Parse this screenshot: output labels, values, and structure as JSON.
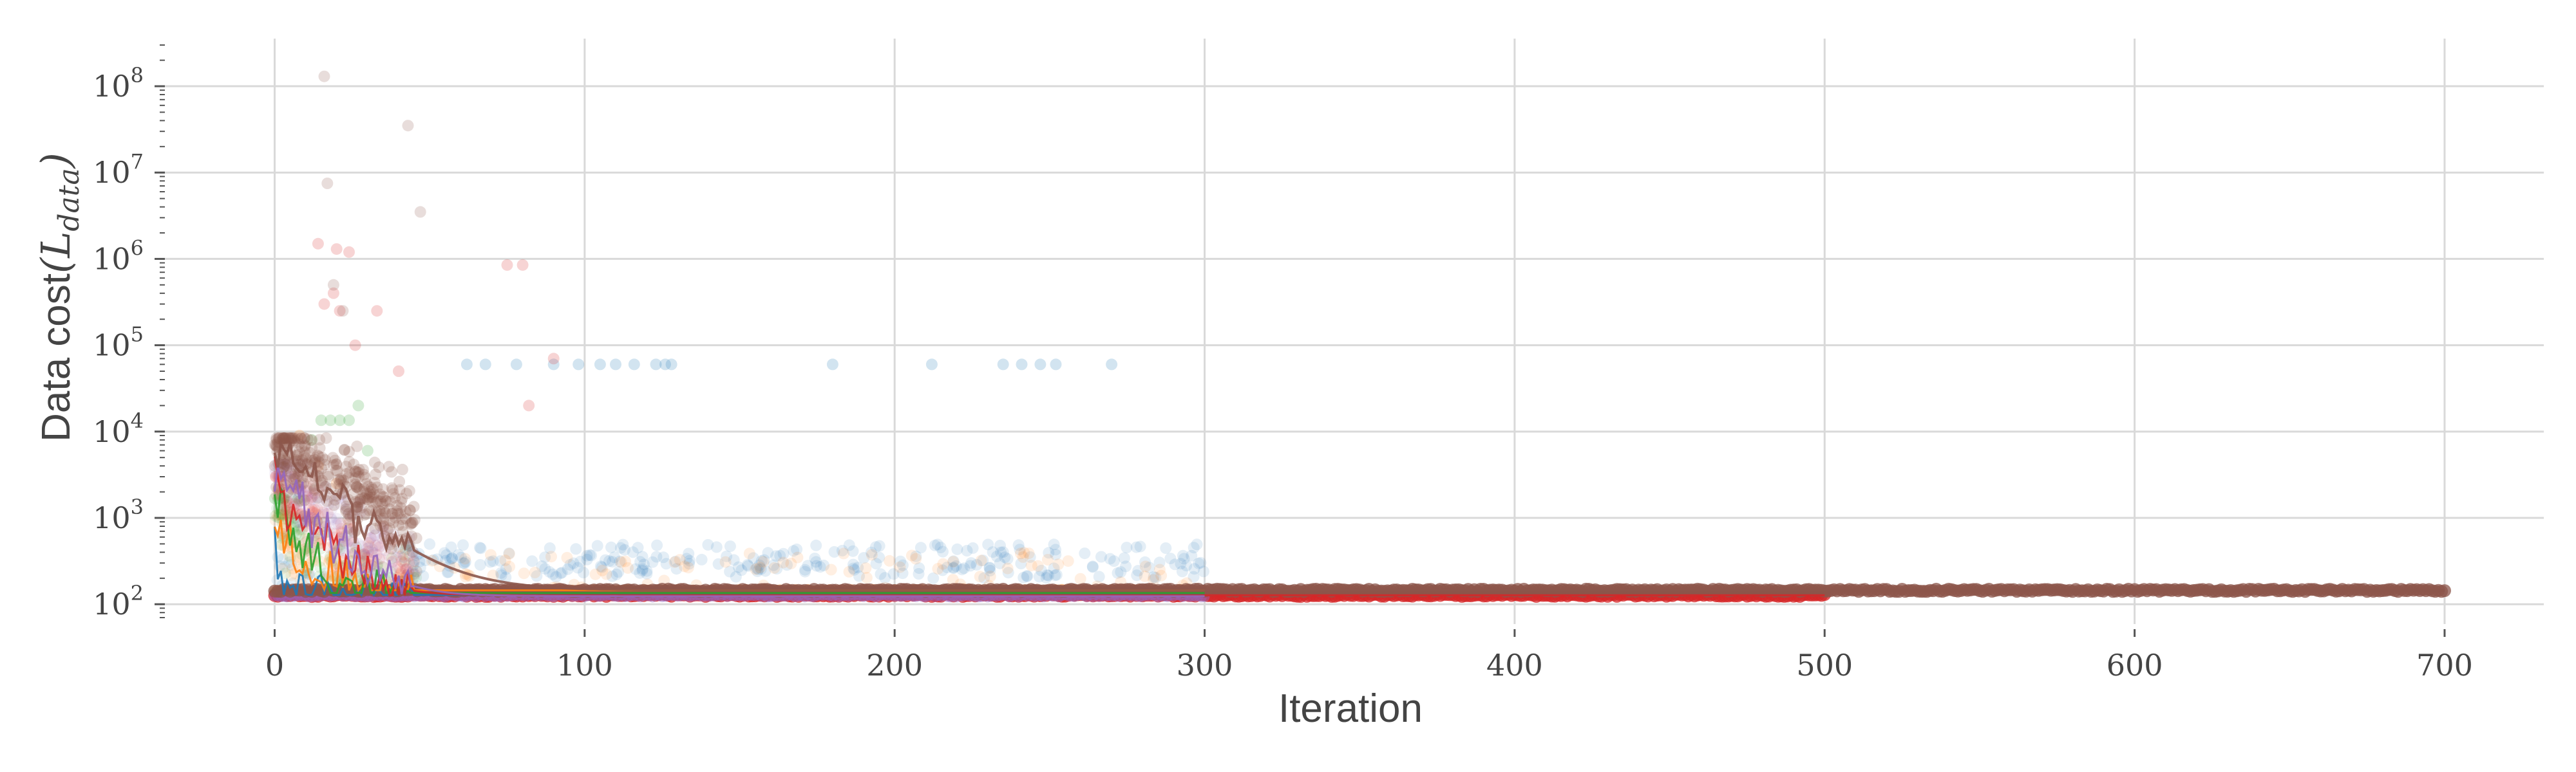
{
  "chart_data": {
    "type": "scatter",
    "title": "",
    "xlabel": "Iteration",
    "ylabel": {
      "prefix": "Data cost",
      "symbol": "L",
      "subscript": "data"
    },
    "xlim": [
      -35,
      732
    ],
    "ylim": [
      70,
      300000000
    ],
    "yscale": "log",
    "grid": true,
    "legend": "none",
    "x_ticks": [
      "0",
      "100",
      "200",
      "300",
      "400",
      "500",
      "600",
      "700"
    ],
    "x_tick_values": [
      0,
      100,
      200,
      300,
      400,
      500,
      600,
      700
    ],
    "y_ticks": [
      {
        "base": "10",
        "exp": "2",
        "value": 100
      },
      {
        "base": "10",
        "exp": "3",
        "value": 1000
      },
      {
        "base": "10",
        "exp": "4",
        "value": 10000
      },
      {
        "base": "10",
        "exp": "5",
        "value": 100000
      },
      {
        "base": "10",
        "exp": "6",
        "value": 1000000
      },
      {
        "base": "10",
        "exp": "7",
        "value": 10000000
      },
      {
        "base": "10",
        "exp": "8",
        "value": 100000000
      }
    ],
    "series": [
      {
        "color": "#1f77b4",
        "iterations": 300,
        "final_value": 128,
        "typical_scatter": [
          200,
          500
        ],
        "outliers": [
          {
            "x": 62,
            "y": 60000
          },
          {
            "x": 68,
            "y": 60000
          },
          {
            "x": 78,
            "y": 60000
          },
          {
            "x": 90,
            "y": 60000
          },
          {
            "x": 98,
            "y": 60000
          },
          {
            "x": 105,
            "y": 60000
          },
          {
            "x": 110,
            "y": 60000
          },
          {
            "x": 116,
            "y": 60000
          },
          {
            "x": 123,
            "y": 60000
          },
          {
            "x": 126,
            "y": 60000
          },
          {
            "x": 128,
            "y": 60000
          },
          {
            "x": 180,
            "y": 60000
          },
          {
            "x": 212,
            "y": 60000
          },
          {
            "x": 235,
            "y": 60000
          },
          {
            "x": 241,
            "y": 60000
          },
          {
            "x": 247,
            "y": 60000
          },
          {
            "x": 252,
            "y": 60000
          },
          {
            "x": 270,
            "y": 60000
          }
        ]
      },
      {
        "color": "#ff7f0e",
        "iterations": 300,
        "final_value": 145,
        "typical_scatter": [
          150,
          400
        ],
        "outliers": [
          {
            "x": 8,
            "y": 9000
          },
          {
            "x": 14,
            "y": 4000
          },
          {
            "x": 20,
            "y": 2500
          }
        ]
      },
      {
        "color": "#2ca02c",
        "iterations": 300,
        "final_value": 135,
        "typical_scatter": [
          130,
          160
        ],
        "outliers": [
          {
            "x": 15,
            "y": 13500
          },
          {
            "x": 18,
            "y": 13500
          },
          {
            "x": 21,
            "y": 13500
          },
          {
            "x": 24,
            "y": 13500
          },
          {
            "x": 12,
            "y": 8000
          },
          {
            "x": 27,
            "y": 20000
          },
          {
            "x": 30,
            "y": 6000
          }
        ]
      },
      {
        "color": "#d62728",
        "iterations": 500,
        "final_value": 127,
        "typical_scatter": [
          125,
          140
        ],
        "outliers": [
          {
            "x": 14,
            "y": 1500000
          },
          {
            "x": 20,
            "y": 1300000
          },
          {
            "x": 24,
            "y": 1200000
          },
          {
            "x": 16,
            "y": 300000
          },
          {
            "x": 19,
            "y": 400000
          },
          {
            "x": 21,
            "y": 250000
          },
          {
            "x": 26,
            "y": 100000
          },
          {
            "x": 33,
            "y": 250000
          },
          {
            "x": 40,
            "y": 50000
          },
          {
            "x": 75,
            "y": 850000
          },
          {
            "x": 80,
            "y": 850000
          },
          {
            "x": 82,
            "y": 20000
          },
          {
            "x": 90,
            "y": 70000
          }
        ]
      },
      {
        "color": "#9467bd",
        "iterations": 300,
        "final_value": 124,
        "typical_scatter": [
          124,
          130
        ],
        "outliers": [
          {
            "x": 4,
            "y": 3500
          },
          {
            "x": 8,
            "y": 2000
          },
          {
            "x": 12,
            "y": 1000
          }
        ]
      },
      {
        "color": "#8c564b",
        "iterations": 700,
        "final_value": 145,
        "typical_scatter": [
          145,
          155
        ],
        "outliers": [
          {
            "x": 16,
            "y": 130000000
          },
          {
            "x": 17,
            "y": 7500000
          },
          {
            "x": 43,
            "y": 35000000
          },
          {
            "x": 47,
            "y": 3500000
          },
          {
            "x": 19,
            "y": 500000
          },
          {
            "x": 22,
            "y": 250000
          }
        ]
      }
    ]
  }
}
